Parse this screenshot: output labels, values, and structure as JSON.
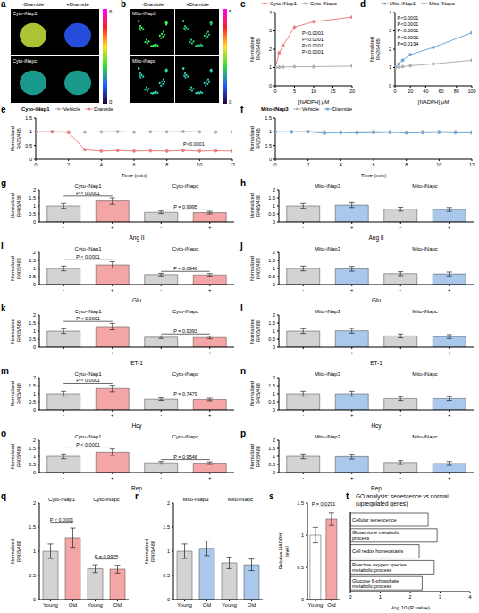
{
  "chart_data": [
    {
      "panel": "a",
      "type": "image",
      "columns": [
        "-Diamide",
        "+Diamide"
      ],
      "rows": [
        "Cyto-iNap1",
        "Cyto-iNapc"
      ],
      "colorbar": {
        "range": [
          0,
          6
        ],
        "ticks": [
          0,
          6
        ]
      }
    },
    {
      "panel": "b",
      "type": "image",
      "columns": [
        "-Diamide",
        "+Diamide"
      ],
      "rows": [
        "Mito-iNap3",
        "Mito-iNapc"
      ],
      "colorbar": {
        "range": [
          0,
          5
        ],
        "ticks": [
          0,
          5
        ]
      }
    },
    {
      "panel": "c",
      "type": "line",
      "x_label": "[NADPH] μM",
      "y_label": "Normalized R420/485",
      "xlim": [
        0,
        20
      ],
      "xticks": [
        0,
        5,
        10,
        15,
        20
      ],
      "ylim": [
        0,
        4
      ],
      "yticks": [
        0,
        1,
        2,
        3,
        4
      ],
      "legend": "top",
      "marker": "circle",
      "series": [
        {
          "name": "Cyto-iNap1",
          "color": "#f08080",
          "x": [
            0,
            1,
            2,
            5,
            10,
            20
          ],
          "values": [
            1.0,
            1.8,
            2.2,
            3.2,
            3.5,
            3.75
          ]
        },
        {
          "name": "Cyto-iNapc",
          "color": "#b0b0b0",
          "x": [
            0,
            1,
            2,
            5,
            10,
            20
          ],
          "values": [
            1.0,
            1.02,
            1.03,
            1.05,
            1.05,
            1.08
          ]
        }
      ],
      "annotations": [
        {
          "x": 7,
          "y": 2.9,
          "text": "P<0.0001"
        },
        {
          "x": 7,
          "y": 2.55,
          "text": "P<0.0001"
        },
        {
          "x": 7,
          "y": 2.2,
          "text": "P<0.0001"
        },
        {
          "x": 7,
          "y": 1.85,
          "text": "P<0.0001"
        }
      ]
    },
    {
      "panel": "d",
      "type": "line",
      "x_label": "[NADPH] μM",
      "y_label": "Normalized R420/485",
      "xlim": [
        0,
        100
      ],
      "xticks": [
        0,
        20,
        40,
        60,
        80,
        100
      ],
      "ylim": [
        0,
        4
      ],
      "yticks": [
        0,
        1,
        2,
        3,
        4
      ],
      "legend": "top",
      "marker": "circle",
      "series": [
        {
          "name": "Mito-iNap1",
          "color": "#6fa8dc",
          "x": [
            0,
            5,
            10,
            20,
            50,
            100
          ],
          "values": [
            1.0,
            1.2,
            1.4,
            1.7,
            2.1,
            2.9
          ]
        },
        {
          "name": "Mito-iNapc",
          "color": "#b0b0b0",
          "x": [
            0,
            5,
            10,
            20,
            50,
            100
          ],
          "values": [
            1.0,
            1.02,
            1.05,
            1.1,
            1.2,
            1.4
          ]
        }
      ],
      "annotations": [
        {
          "x": 3,
          "y": 3.7,
          "text": "P<0.0001"
        },
        {
          "x": 3,
          "y": 3.35,
          "text": "P<0.0001"
        },
        {
          "x": 3,
          "y": 3.0,
          "text": "P<0.0001"
        },
        {
          "x": 3,
          "y": 2.65,
          "text": "P<0.0001"
        },
        {
          "x": 3,
          "y": 2.3,
          "text": "P=0.0194"
        }
      ]
    },
    {
      "panel": "e",
      "type": "line",
      "title": "Cyto-iNap1",
      "x_label": "Time (min)",
      "y_label": "Normalized R420/485",
      "xlim": [
        0,
        12
      ],
      "xticks": [
        0,
        2,
        4,
        6,
        8,
        10,
        12
      ],
      "ylim": [
        0,
        1.5
      ],
      "yticks": [
        0,
        0.5,
        1,
        1.5
      ],
      "legend": "top",
      "marker": "circle",
      "series": [
        {
          "name": "Vehicle",
          "color": "#b0b0b0",
          "x": [
            0,
            1,
            2,
            3,
            4,
            5,
            6,
            7,
            8,
            9,
            10,
            11,
            12
          ],
          "values": [
            1.0,
            1.01,
            1.0,
            0.99,
            1.0,
            1.01,
            0.99,
            1.0,
            1.0,
            1.01,
            1.0,
            0.99,
            1.0
          ]
        },
        {
          "name": "Diamide",
          "color": "#f08080",
          "x": [
            0,
            1,
            2,
            3,
            4,
            5,
            6,
            7,
            8,
            9,
            10,
            11,
            12
          ],
          "values": [
            1.0,
            1.0,
            0.98,
            0.35,
            0.3,
            0.32,
            0.3,
            0.31,
            0.3,
            0.32,
            0.3,
            0.31,
            0.3
          ]
        }
      ],
      "annotations": [
        {
          "x": 9,
          "y": 0.55,
          "text": "P<0.0001"
        }
      ]
    },
    {
      "panel": "f",
      "type": "line",
      "title": "Mito-iNap3",
      "x_label": "Time (min)",
      "y_label": "Normalized R420/485",
      "xlim": [
        0,
        12
      ],
      "xticks": [
        0,
        2,
        4,
        6,
        8,
        10,
        12
      ],
      "ylim": [
        0,
        1.5
      ],
      "yticks": [
        0,
        0.5,
        1,
        1.5
      ],
      "legend": "top",
      "marker": "circle",
      "series": [
        {
          "name": "Vehicle",
          "color": "#b0b0b0",
          "x": [
            0,
            1,
            2,
            3,
            4,
            5,
            6,
            7,
            8,
            9,
            10,
            11,
            12
          ],
          "values": [
            1.0,
            1.0,
            1.01,
            1.0,
            0.99,
            1.0,
            1.01,
            1.0,
            0.99,
            1.0,
            1.01,
            1.0,
            1.0
          ]
        },
        {
          "name": "Diamide",
          "color": "#6fa8dc",
          "x": [
            0,
            1,
            2,
            3,
            4,
            5,
            6,
            7,
            8,
            9,
            10,
            11,
            12
          ],
          "values": [
            1.0,
            1.0,
            1.0,
            0.95,
            0.97,
            0.96,
            0.97,
            0.98,
            0.96,
            0.97,
            0.98,
            0.97,
            0.96
          ]
        }
      ]
    },
    {
      "panel": "g",
      "type": "bar",
      "x_label": "Ang II",
      "y_label": "Normalized R405/488",
      "categories": [
        "-",
        "+",
        "-",
        "+"
      ],
      "values": [
        1.0,
        1.3,
        0.6,
        0.58
      ],
      "errors": [
        0.15,
        0.2,
        0.08,
        0.08
      ],
      "colors": [
        "#d3d3d3",
        "#f4a6a6",
        "#d3d3d3",
        "#f4a6a6"
      ],
      "ylim": [
        0,
        2
      ],
      "yticks": [
        0,
        0.5,
        1,
        1.5,
        2
      ],
      "groups": [
        {
          "name": "Cyto-iNap1",
          "members": [
            0,
            1
          ],
          "p_label": "P < 0.0001"
        },
        {
          "name": "Cyto-iNapc",
          "members": [
            2,
            3
          ],
          "p_label": "P = 0.9995"
        }
      ]
    },
    {
      "panel": "h",
      "type": "bar",
      "x_label": "Ang II",
      "y_label": "Normalized R405/488",
      "categories": [
        "-",
        "+",
        "-",
        "+"
      ],
      "values": [
        1.0,
        1.05,
        0.8,
        0.78
      ],
      "errors": [
        0.15,
        0.15,
        0.12,
        0.12
      ],
      "colors": [
        "#d3d3d3",
        "#a9c8ec",
        "#d3d3d3",
        "#a9c8ec"
      ],
      "ylim": [
        0,
        2
      ],
      "yticks": [
        0,
        0.5,
        1,
        1.5,
        2
      ],
      "groups": [
        {
          "name": "Mito-iNap3",
          "members": [
            0,
            1
          ]
        },
        {
          "name": "Mito-iNapc",
          "members": [
            2,
            3
          ]
        }
      ]
    },
    {
      "panel": "i",
      "type": "bar",
      "x_label": "Glu",
      "y_label": "Normalized R405/488",
      "categories": [
        "-",
        "+",
        "-",
        "+"
      ],
      "values": [
        1.0,
        1.22,
        0.62,
        0.6
      ],
      "errors": [
        0.15,
        0.2,
        0.08,
        0.08
      ],
      "colors": [
        "#d3d3d3",
        "#f4a6a6",
        "#d3d3d3",
        "#f4a6a6"
      ],
      "ylim": [
        0,
        2
      ],
      "yticks": [
        0,
        0.5,
        1,
        1.5,
        2
      ],
      "groups": [
        {
          "name": "Cyto-iNap1",
          "members": [
            0,
            1
          ],
          "p_label": "P < 0.0001"
        },
        {
          "name": "Cyto-iNapc",
          "members": [
            2,
            3
          ],
          "p_label": "P = 0.6946"
        }
      ]
    },
    {
      "panel": "j",
      "type": "bar",
      "x_label": "Glu",
      "y_label": "Normalized R405/488",
      "categories": [
        "-",
        "+",
        "-",
        "+"
      ],
      "values": [
        1.0,
        0.98,
        0.68,
        0.66
      ],
      "errors": [
        0.15,
        0.15,
        0.12,
        0.12
      ],
      "colors": [
        "#d3d3d3",
        "#a9c8ec",
        "#d3d3d3",
        "#a9c8ec"
      ],
      "ylim": [
        0,
        2
      ],
      "yticks": [
        0,
        0.5,
        1,
        1.5,
        2
      ],
      "groups": [
        {
          "name": "Mito-iNap3",
          "members": [
            0,
            1
          ]
        },
        {
          "name": "Mito-iNapc",
          "members": [
            2,
            3
          ]
        }
      ]
    },
    {
      "panel": "k",
      "type": "bar",
      "x_label": "ET-1",
      "y_label": "Normalized R405/488",
      "categories": [
        "-",
        "+",
        "-",
        "+"
      ],
      "values": [
        1.0,
        1.28,
        0.62,
        0.6
      ],
      "errors": [
        0.15,
        0.2,
        0.08,
        0.08
      ],
      "colors": [
        "#d3d3d3",
        "#f4a6a6",
        "#d3d3d3",
        "#f4a6a6"
      ],
      "ylim": [
        0,
        2
      ],
      "yticks": [
        0,
        0.5,
        1,
        1.5,
        2
      ],
      "groups": [
        {
          "name": "Cyto-iNap1",
          "members": [
            0,
            1
          ],
          "p_label": "P < 0.0001"
        },
        {
          "name": "Cyto-iNapc",
          "members": [
            2,
            3
          ],
          "p_label": "P = 0.9393"
        }
      ]
    },
    {
      "panel": "l",
      "type": "bar",
      "x_label": "ET-1",
      "y_label": "Normalized R405/488",
      "categories": [
        "-",
        "+",
        "-",
        "+"
      ],
      "values": [
        1.0,
        1.02,
        0.7,
        0.66
      ],
      "errors": [
        0.15,
        0.15,
        0.12,
        0.12
      ],
      "colors": [
        "#d3d3d3",
        "#a9c8ec",
        "#d3d3d3",
        "#a9c8ec"
      ],
      "ylim": [
        0,
        2
      ],
      "yticks": [
        0,
        0.5,
        1,
        1.5,
        2
      ],
      "groups": [
        {
          "name": "Mito-iNap3",
          "members": [
            0,
            1
          ]
        },
        {
          "name": "Mito-iNapc",
          "members": [
            2,
            3
          ]
        }
      ]
    },
    {
      "panel": "m",
      "type": "bar",
      "x_label": "Hcy",
      "y_label": "Normalized R405/488",
      "categories": [
        "-",
        "+",
        "-",
        "+"
      ],
      "values": [
        1.0,
        1.32,
        0.66,
        0.64
      ],
      "errors": [
        0.15,
        0.2,
        0.08,
        0.08
      ],
      "colors": [
        "#d3d3d3",
        "#f4a6a6",
        "#d3d3d3",
        "#f4a6a6"
      ],
      "ylim": [
        0,
        2
      ],
      "yticks": [
        0,
        0.5,
        1,
        1.5,
        2
      ],
      "groups": [
        {
          "name": "Cyto-iNap1",
          "members": [
            0,
            1
          ],
          "p_label": "P < 0.0001"
        },
        {
          "name": "Cyto-iNapc",
          "members": [
            2,
            3
          ],
          "p_label": "P = 0.7479"
        }
      ]
    },
    {
      "panel": "n",
      "type": "bar",
      "x_label": "Hcy",
      "y_label": "Normalized R405/488",
      "categories": [
        "-",
        "+",
        "-",
        "+"
      ],
      "values": [
        1.0,
        1.0,
        0.7,
        0.7
      ],
      "errors": [
        0.15,
        0.15,
        0.12,
        0.12
      ],
      "colors": [
        "#d3d3d3",
        "#a9c8ec",
        "#d3d3d3",
        "#a9c8ec"
      ],
      "ylim": [
        0,
        2
      ],
      "yticks": [
        0,
        0.5,
        1,
        1.5,
        2
      ],
      "groups": [
        {
          "name": "Mito-iNap3",
          "members": [
            0,
            1
          ]
        },
        {
          "name": "Mito-iNapc",
          "members": [
            2,
            3
          ]
        }
      ]
    },
    {
      "panel": "o",
      "type": "bar",
      "x_label": "Rep",
      "y_label": "Normalized R405/488",
      "categories": [
        "-",
        "+",
        "-",
        "+"
      ],
      "values": [
        1.0,
        1.26,
        0.6,
        0.58
      ],
      "errors": [
        0.15,
        0.2,
        0.08,
        0.08
      ],
      "colors": [
        "#d3d3d3",
        "#f4a6a6",
        "#d3d3d3",
        "#f4a6a6"
      ],
      "ylim": [
        0,
        2
      ],
      "yticks": [
        0,
        0.5,
        1,
        1.5,
        2
      ],
      "groups": [
        {
          "name": "Cyto-iNap1",
          "members": [
            0,
            1
          ],
          "p_label": "P < 0.0001"
        },
        {
          "name": "Cyto-iNapc",
          "members": [
            2,
            3
          ],
          "p_label": "P = 0.9546"
        }
      ]
    },
    {
      "panel": "p",
      "type": "bar",
      "x_label": "Rep",
      "y_label": "Normalized R405/488",
      "categories": [
        "-",
        "+",
        "-",
        "+"
      ],
      "values": [
        1.0,
        0.98,
        0.62,
        0.56
      ],
      "errors": [
        0.15,
        0.15,
        0.12,
        0.12
      ],
      "colors": [
        "#d3d3d3",
        "#a9c8ec",
        "#d3d3d3",
        "#a9c8ec"
      ],
      "ylim": [
        0,
        2
      ],
      "yticks": [
        0,
        0.5,
        1,
        1.5,
        2
      ],
      "groups": [
        {
          "name": "Mito-iNap3",
          "members": [
            0,
            1
          ]
        },
        {
          "name": "Mito-iNapc",
          "members": [
            2,
            3
          ]
        }
      ]
    },
    {
      "panel": "q",
      "type": "bar",
      "y_label": "Normalized R405/488",
      "categories": [
        "Young",
        "Old",
        "Young",
        "Old"
      ],
      "values": [
        1.0,
        1.28,
        0.64,
        0.63
      ],
      "errors": [
        0.15,
        0.2,
        0.08,
        0.08
      ],
      "colors": [
        "#d3d3d3",
        "#f4a6a6",
        "#d3d3d3",
        "#f4a6a6"
      ],
      "ylim": [
        0,
        2
      ],
      "yticks": [
        0,
        0.5,
        1,
        1.5,
        2
      ],
      "groups": [
        {
          "name": "Cyto-iNap1",
          "members": [
            0,
            1
          ],
          "p_label": "P < 0.0001"
        },
        {
          "name": "Cyto-iNapc",
          "members": [
            2,
            3
          ],
          "p_label": "P = 0.9925"
        }
      ]
    },
    {
      "panel": "r",
      "type": "bar",
      "y_label": "Normalized R405/488",
      "categories": [
        "Young",
        "Old",
        "Young",
        "Old"
      ],
      "values": [
        1.0,
        1.06,
        0.76,
        0.72
      ],
      "errors": [
        0.15,
        0.15,
        0.12,
        0.12
      ],
      "colors": [
        "#d3d3d3",
        "#a9c8ec",
        "#d3d3d3",
        "#a9c8ec"
      ],
      "ylim": [
        0,
        2
      ],
      "yticks": [
        0,
        0.5,
        1,
        1.5,
        2
      ],
      "groups": [
        {
          "name": "Mito-iNap3",
          "members": [
            0,
            1
          ]
        },
        {
          "name": "Mito-iNapc",
          "members": [
            2,
            3
          ]
        }
      ]
    },
    {
      "panel": "s",
      "type": "bar",
      "y_label": "Relative NADPH level",
      "categories": [
        "Young",
        "Old"
      ],
      "values": [
        1.0,
        1.25
      ],
      "errors": [
        0.12,
        0.1
      ],
      "colors": [
        "#ffffff",
        "#f4a6a6"
      ],
      "ylim": [
        0,
        1.5
      ],
      "yticks": [
        0,
        0.5,
        1,
        1.5
      ],
      "groups": [
        {
          "members": [
            0,
            1
          ],
          "p_label": "P = 0.0291"
        }
      ]
    },
    {
      "panel": "t",
      "type": "bar",
      "orientation": "horizontal",
      "title": "GO analysis: senescence vs normal (upregulated genes)",
      "x_label": "-log 10 (P value)",
      "categories": [
        "Cellular senescence",
        "Glutathione metabolic process",
        "Cell redox homeostasis",
        "Reactive oxygen species metabolic process",
        "Glucose 6-phosphate metabolic process"
      ],
      "values": [
        2.6,
        2.9,
        2.3,
        2.8,
        2.4
      ],
      "color": "#ffffff",
      "xlim": [
        0,
        4
      ],
      "xticks": [
        0,
        1,
        2,
        3,
        4
      ]
    }
  ]
}
